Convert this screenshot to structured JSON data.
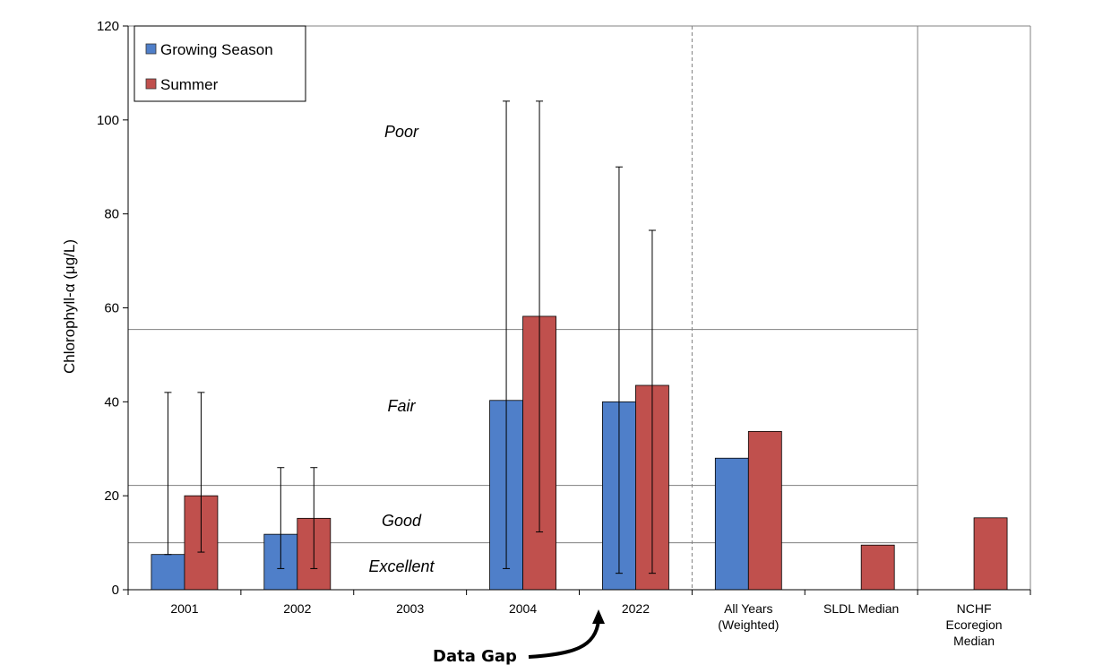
{
  "chart_data": {
    "type": "bar",
    "ylabel": "Chlorophyll-α (μg/L)",
    "ylim": [
      0,
      120
    ],
    "yticks": [
      0,
      20,
      40,
      60,
      80,
      100,
      120
    ],
    "grid": false,
    "legend_position": "top-left",
    "categories": [
      [
        "2001"
      ],
      [
        "2002"
      ],
      [
        "2003"
      ],
      [
        "2004"
      ],
      [
        "2022"
      ],
      [
        "All Years",
        "(Weighted)"
      ],
      [
        "SLDL Median"
      ],
      [
        "NCHF",
        "Ecoregion",
        "Median"
      ]
    ],
    "series": [
      {
        "name": "Growing Season",
        "color": "#4f7fc9",
        "values": [
          7.5,
          11.8,
          null,
          40.3,
          40.0,
          28.0,
          null,
          null
        ],
        "error_low": [
          7.5,
          4.5,
          null,
          4.5,
          3.5,
          null,
          null,
          null
        ],
        "error_high": [
          42,
          26,
          null,
          104,
          90,
          null,
          null,
          null
        ]
      },
      {
        "name": "Summer",
        "color": "#c0504d",
        "values": [
          20.0,
          15.2,
          null,
          58.2,
          43.5,
          33.7,
          9.5,
          15.3
        ],
        "error_low": [
          8,
          4.5,
          null,
          12.3,
          3.5,
          null,
          null,
          null
        ],
        "error_high": [
          42,
          26,
          null,
          104,
          76.5,
          null,
          null,
          null
        ]
      }
    ],
    "thresholds": [
      10,
      22.2,
      55.4
    ],
    "zones": [
      "Poor",
      "Fair",
      "Good",
      "Excellent"
    ],
    "annotation": "Data Gap"
  }
}
